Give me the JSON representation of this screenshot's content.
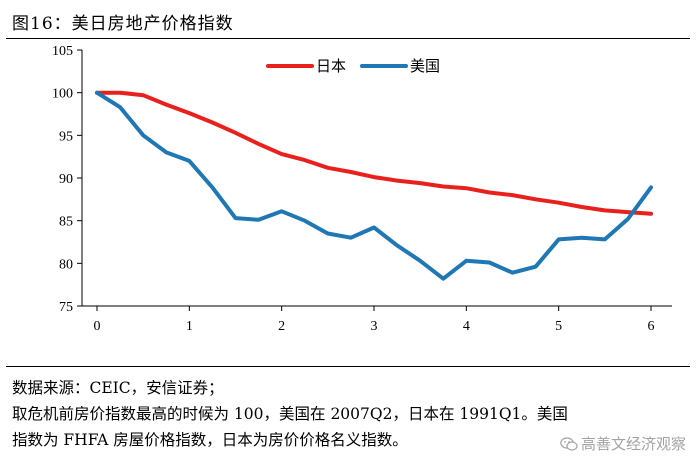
{
  "figure": {
    "title": "图16：美日房地产价格指数"
  },
  "chart_data": {
    "type": "line",
    "title": "图16：美日房地产价格指数",
    "xlabel": "",
    "ylabel": "",
    "xlim": [
      0,
      6
    ],
    "ylim": [
      75,
      105
    ],
    "x_ticks": [
      0,
      1,
      2,
      3,
      4,
      5,
      6
    ],
    "y_ticks": [
      75,
      80,
      85,
      90,
      95,
      100,
      105
    ],
    "grid": false,
    "legend_position": "top-center",
    "series": [
      {
        "name": "日本",
        "color": "#e8211c",
        "x": [
          0,
          0.25,
          0.5,
          0.75,
          1,
          1.25,
          1.5,
          1.75,
          2,
          2.25,
          2.5,
          2.75,
          3,
          3.25,
          3.5,
          3.75,
          4,
          4.25,
          4.5,
          4.75,
          5,
          5.25,
          5.5,
          5.75,
          6
        ],
        "values": [
          100,
          100,
          99.7,
          98.6,
          97.6,
          96.5,
          95.3,
          94.0,
          92.8,
          92.1,
          91.2,
          90.7,
          90.1,
          89.7,
          89.4,
          89.0,
          88.8,
          88.3,
          88.0,
          87.5,
          87.1,
          86.6,
          86.2,
          86.0,
          85.8
        ]
      },
      {
        "name": "美国",
        "color": "#1f77b4",
        "x": [
          0,
          0.25,
          0.5,
          0.75,
          1,
          1.25,
          1.5,
          1.75,
          2,
          2.25,
          2.5,
          2.75,
          3,
          3.25,
          3.5,
          3.75,
          4,
          4.25,
          4.5,
          4.75,
          5,
          5.25,
          5.5,
          5.75,
          6
        ],
        "values": [
          100,
          98.3,
          95.0,
          93.0,
          92.0,
          88.9,
          85.3,
          85.1,
          86.1,
          85.0,
          83.5,
          83.0,
          84.2,
          82.1,
          80.3,
          78.2,
          80.3,
          80.1,
          78.9,
          79.6,
          82.8,
          83.0,
          82.8,
          85.2,
          88.9
        ]
      }
    ]
  },
  "notes": {
    "source": "数据来源：CEIC，安信证券；",
    "line2": "取危机前房价指数最高的时候为 100，美国在 2007Q2，日本在 1991Q1。美国",
    "line3": "指数为 FHFA 房屋价格指数，日本为房价价格名义指数。"
  },
  "watermark": {
    "text": "高善文经济观察",
    "icon": "wechat-icon"
  }
}
